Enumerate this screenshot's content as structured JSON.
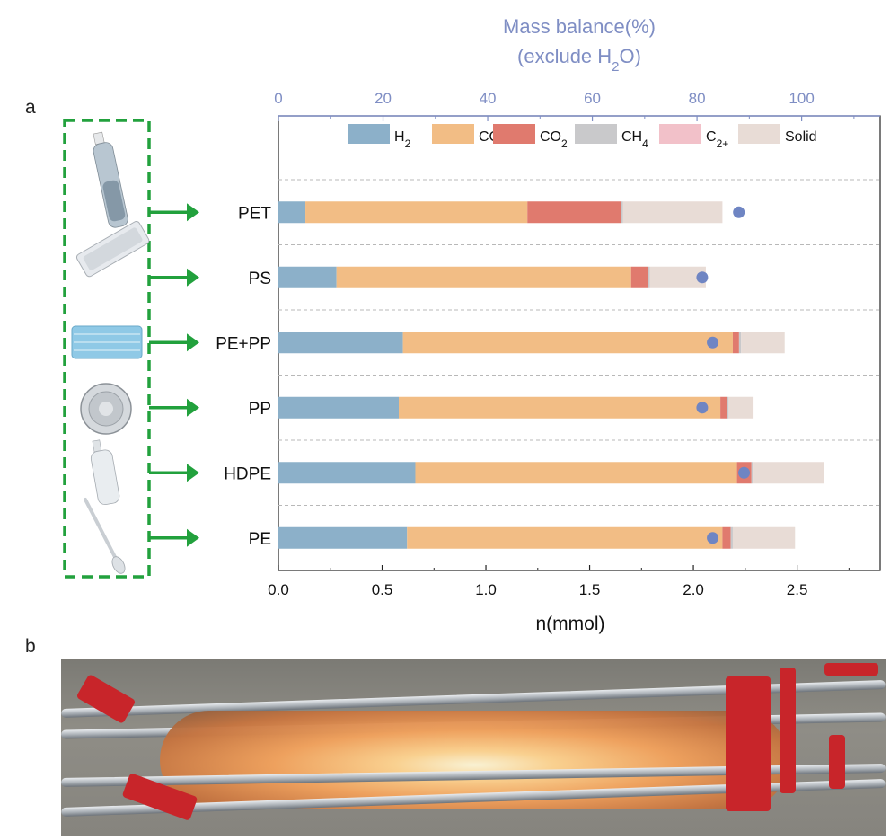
{
  "panel_labels": {
    "a": "a",
    "b": "b"
  },
  "colors": {
    "H2": "#8cb0c9",
    "CO": "#f2bd85",
    "CO2": "#e07a6e",
    "CH4": "#c9c9cb",
    "C2+": "#f2c1c9",
    "Solid": "#e8dcd6",
    "dot": "#6f85c3",
    "top_axis": "#7f8ec4",
    "arrow": "#22a13d",
    "dashed_box": "#22a13d"
  },
  "chart_data": {
    "type": "bar",
    "orientation": "horizontal",
    "stacked": true,
    "categories": [
      "PET",
      "PS",
      "PE+PP",
      "PP",
      "HDPE",
      "PE"
    ],
    "series": [
      {
        "name": "H2",
        "label_main": "H",
        "label_sub": "2",
        "values": [
          0.13,
          0.28,
          0.6,
          0.58,
          0.66,
          0.62
        ]
      },
      {
        "name": "CO",
        "label_main": "CO",
        "label_sub": "",
        "values": [
          1.07,
          1.42,
          1.59,
          1.55,
          1.55,
          1.52
        ]
      },
      {
        "name": "CO2",
        "label_main": "CO",
        "label_sub": "2",
        "values": [
          0.45,
          0.08,
          0.03,
          0.03,
          0.07,
          0.04
        ]
      },
      {
        "name": "CH4",
        "label_main": "CH",
        "label_sub": "4",
        "values": [
          0.01,
          0.01,
          0.01,
          0.01,
          0.01,
          0.01
        ]
      },
      {
        "name": "C2+",
        "label_main": "C",
        "label_sub": "2+",
        "values": [
          0.0,
          0.0,
          0.0,
          0.0,
          0.0,
          0.0
        ]
      },
      {
        "name": "Solid",
        "label_main": "Solid",
        "label_sub": "",
        "values": [
          0.48,
          0.27,
          0.21,
          0.12,
          0.34,
          0.3
        ]
      }
    ],
    "mass_balance_percent": [
      88,
      81,
      83,
      81,
      89,
      83
    ],
    "xlabel": "n(mmol)",
    "xlim": [
      0,
      2.9
    ],
    "xticks": [
      "0.0",
      "0.5",
      "1.0",
      "1.5",
      "2.0",
      "2.5"
    ],
    "xtick_values": [
      0,
      0.5,
      1.0,
      1.5,
      2.0,
      2.5
    ],
    "top_axis": {
      "title_line1": "Mass balance(%)",
      "title_line2_pre": "(exclude H",
      "title_line2_sub": "2",
      "title_line2_post": "O)",
      "xlim": [
        0,
        115
      ],
      "xticks": [
        "0",
        "20",
        "40",
        "60",
        "80",
        "100"
      ],
      "xtick_values": [
        0,
        20,
        40,
        60,
        80,
        100
      ]
    },
    "legend_position": "top",
    "grid": "dashed horizontal separators"
  }
}
